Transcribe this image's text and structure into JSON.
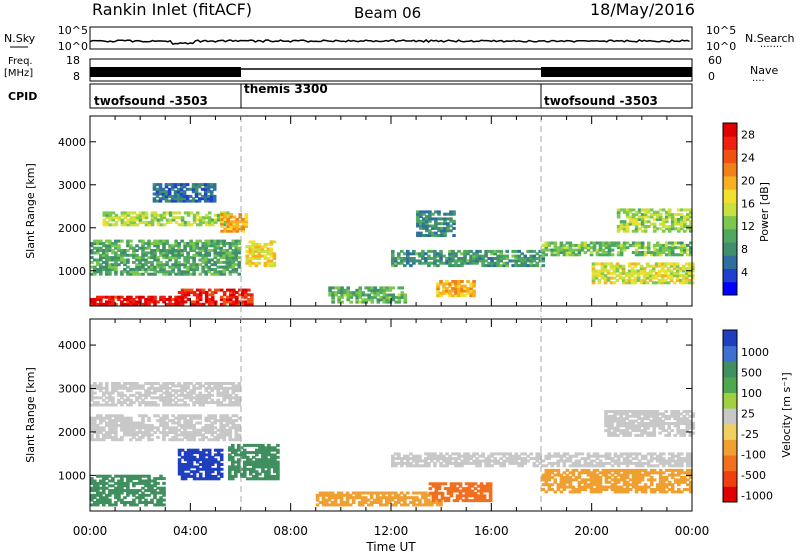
{
  "header": {
    "station": "Rankin Inlet (fitACF)",
    "beam": "Beam 06",
    "date": "18/May/2016"
  },
  "top_panels": {
    "nsky_label": "N.Sky",
    "nsky_ticks": [
      "10^5",
      "10^0"
    ],
    "nsearch_label": "N.Search",
    "freq_label_1": "Freq.",
    "freq_label_2": "[MHz]",
    "freq_ticks": [
      "18",
      "8"
    ],
    "nave_label": "Nave",
    "nave_ticks": [
      "60",
      "0"
    ],
    "cpid_label": "CPID",
    "cpid_segments": [
      {
        "label": "twofsound -3503",
        "start_hour": 0,
        "end_hour": 6
      },
      {
        "label": "themis 3300",
        "start_hour": 6,
        "end_hour": 18
      },
      {
        "label": "twofsound -3503",
        "start_hour": 18,
        "end_hour": 24
      }
    ]
  },
  "chart_data": [
    {
      "type": "heatmap",
      "panel": "power",
      "xlabel": "Time UT",
      "ylabel": "Slant Range [km]",
      "xlim_hours": [
        0,
        24
      ],
      "ylim_km": [
        180,
        4600
      ],
      "x_ticks": [
        "00:00",
        "04:00",
        "08:00",
        "12:00",
        "16:00",
        "20:00",
        "00:00"
      ],
      "y_ticks": [
        "1000",
        "2000",
        "3000",
        "4000"
      ],
      "colorbar": {
        "label": "Power [dB]",
        "ticks": [
          "4",
          "8",
          "12",
          "16",
          "20",
          "24",
          "28"
        ],
        "range": [
          0,
          30
        ],
        "colors": [
          "#0000ff",
          "#1f3fcf",
          "#2e6fa0",
          "#3f8f6f",
          "#4fa860",
          "#7ac84e",
          "#c8e040",
          "#f2e02e",
          "#f8b020",
          "#f08018",
          "#f05010",
          "#f02010",
          "#e00000"
        ]
      },
      "regions": [
        {
          "t": [
            0,
            3.5
          ],
          "r": [
            200,
            420
          ],
          "value": 28
        },
        {
          "t": [
            3.5,
            6.5
          ],
          "r": [
            200,
            550
          ],
          "value": 27
        },
        {
          "t": [
            0.5,
            5.5
          ],
          "r": [
            2050,
            2350
          ],
          "value": 14
        },
        {
          "t": [
            5.2,
            6.2
          ],
          "r": [
            1900,
            2300
          ],
          "value": 20
        },
        {
          "t": [
            6.2,
            7.3
          ],
          "r": [
            1100,
            1700
          ],
          "value": 17
        },
        {
          "t": [
            0,
            6
          ],
          "r": [
            900,
            1700
          ],
          "value": 10
        },
        {
          "t": [
            2.5,
            5
          ],
          "r": [
            2600,
            3000
          ],
          "value": 6
        },
        {
          "t": [
            13.8,
            15.3
          ],
          "r": [
            400,
            750
          ],
          "value": 20
        },
        {
          "t": [
            12,
            18
          ],
          "r": [
            1100,
            1450
          ],
          "value": 9
        },
        {
          "t": [
            18,
            24
          ],
          "r": [
            1350,
            1650
          ],
          "value": 12
        },
        {
          "t": [
            21,
            24
          ],
          "r": [
            1900,
            2400
          ],
          "value": 14
        },
        {
          "t": [
            20,
            24
          ],
          "r": [
            700,
            1150
          ],
          "value": 16
        },
        {
          "t": [
            9.5,
            12.5
          ],
          "r": [
            250,
            600
          ],
          "value": 11
        },
        {
          "t": [
            13,
            14.5
          ],
          "r": [
            1800,
            2400
          ],
          "value": 8
        }
      ]
    },
    {
      "type": "heatmap",
      "panel": "velocity",
      "xlabel": "Time UT",
      "ylabel": "Slant Range [km]",
      "xlim_hours": [
        0,
        24
      ],
      "ylim_km": [
        180,
        4600
      ],
      "x_ticks": [
        "00:00",
        "04:00",
        "08:00",
        "12:00",
        "16:00",
        "20:00",
        "00:00"
      ],
      "y_ticks": [
        "1000",
        "2000",
        "3000",
        "4000"
      ],
      "colorbar": {
        "label": "Velocity [m s⁻¹]",
        "ticks": [
          "1000",
          "500",
          "100",
          "25",
          "-25",
          "-100",
          "-500",
          "-1000"
        ],
        "colors": [
          "#1f3fbf",
          "#3f6fd0",
          "#3f8f5f",
          "#4fa84f",
          "#9fd040",
          "#c8c8c8",
          "#f0d060",
          "#f0a030",
          "#f07020",
          "#f04010",
          "#e00000"
        ]
      },
      "regions": [
        {
          "t": [
            0,
            6
          ],
          "r": [
            1800,
            2400
          ],
          "value": 0
        },
        {
          "t": [
            0,
            6
          ],
          "r": [
            2600,
            3100
          ],
          "value": 0
        },
        {
          "t": [
            3.5,
            5.2
          ],
          "r": [
            900,
            1600
          ],
          "value": 800
        },
        {
          "t": [
            5.5,
            7.5
          ],
          "r": [
            900,
            1700
          ],
          "value": 200
        },
        {
          "t": [
            0,
            3
          ],
          "r": [
            300,
            1000
          ],
          "value": 150
        },
        {
          "t": [
            9,
            14
          ],
          "r": [
            300,
            600
          ],
          "value": -150
        },
        {
          "t": [
            13.5,
            16
          ],
          "r": [
            400,
            800
          ],
          "value": -400
        },
        {
          "t": [
            18,
            24
          ],
          "r": [
            600,
            1100
          ],
          "value": -150
        },
        {
          "t": [
            20.5,
            24
          ],
          "r": [
            1900,
            2500
          ],
          "value": 0
        },
        {
          "t": [
            12,
            24
          ],
          "r": [
            1200,
            1500
          ],
          "value": 0
        }
      ]
    }
  ]
}
